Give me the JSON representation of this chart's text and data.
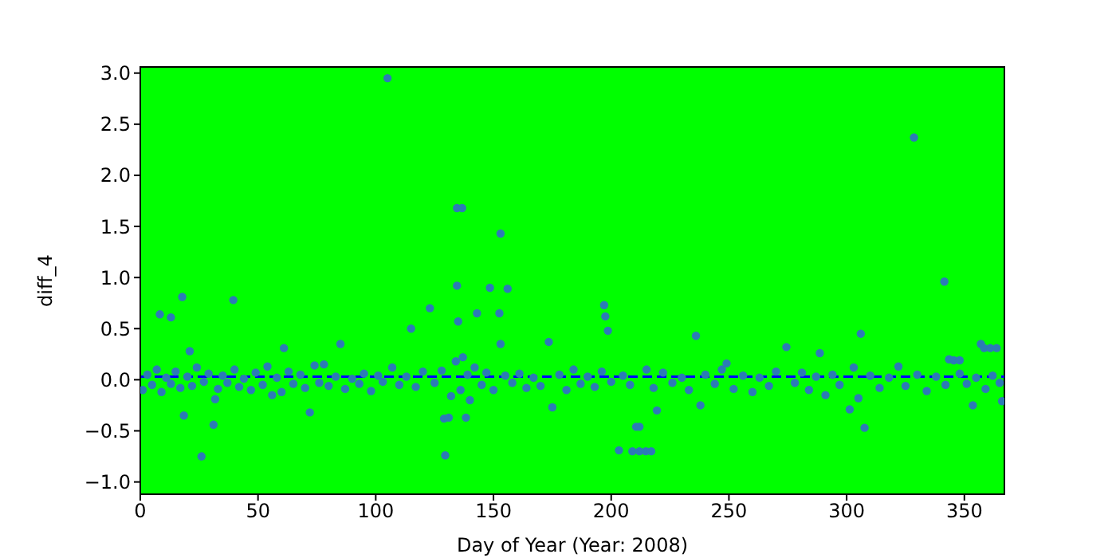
{
  "chart_data": {
    "type": "scatter",
    "xlabel": "Day of Year (Year: 2008)",
    "ylabel": "diff_4",
    "xlim": [
      0,
      367
    ],
    "ylim": [
      -1.12,
      3.06
    ],
    "xticks": [
      0,
      50,
      100,
      150,
      200,
      250,
      300,
      350
    ],
    "yticks": [
      {
        "value": -1,
        "label": "−1.0"
      },
      {
        "value": -0.5,
        "label": "−0.5"
      },
      {
        "value": 0,
        "label": "0.0"
      },
      {
        "value": 0.5,
        "label": "0.5"
      },
      {
        "value": 1,
        "label": "1.0"
      },
      {
        "value": 1.5,
        "label": "1.5"
      },
      {
        "value": 2,
        "label": "2.0"
      },
      {
        "value": 2.5,
        "label": "2.5"
      },
      {
        "value": 3,
        "label": "3.0"
      }
    ],
    "marker": "circle",
    "ref_lines": [
      {
        "axis": "y",
        "value": 0.03,
        "color": "#0000ff",
        "line_style": "dashed"
      }
    ],
    "series": [
      {
        "color": "#2c7bb6",
        "x": [
          105,
          134.5,
          136.7,
          153,
          134.5,
          148.5,
          156,
          17.8,
          39.5,
          8.3,
          13,
          123,
          135,
          143,
          152.5,
          115,
          153,
          173.5,
          197,
          197.5,
          198.6,
          85,
          61,
          21,
          328.6,
          341.5,
          236,
          274.4,
          306,
          288.6,
          357,
          358.4,
          361,
          363.7,
          343.5,
          345.5,
          348,
          18.5,
          31.8,
          31.1,
          26,
          72,
          129,
          131,
          129.5,
          138.3,
          175,
          203.3,
          209,
          212,
          214.7,
          217,
          210.6,
          212,
          219.4,
          237.9,
          307.6,
          301.3,
          353.6,
          366,
          1,
          3,
          5,
          7,
          9,
          11,
          13,
          15,
          17,
          20,
          22,
          24,
          27,
          29,
          33,
          35,
          37,
          40,
          42,
          44,
          47,
          49,
          52,
          54,
          56,
          58,
          60,
          63,
          65,
          68,
          70,
          74,
          76,
          78,
          80,
          83,
          87,
          90,
          93,
          95,
          98,
          101,
          103,
          107,
          110,
          113,
          117,
          120,
          125,
          128,
          132,
          134,
          136,
          137,
          139,
          140,
          142,
          145,
          147,
          150,
          155,
          158,
          161,
          164,
          167,
          170,
          178,
          181,
          184,
          187,
          190,
          193,
          196,
          200,
          205,
          208,
          215,
          218,
          222,
          226,
          230,
          233,
          240,
          244,
          247,
          249,
          252,
          256,
          260,
          263,
          267,
          270,
          278,
          281,
          284,
          287,
          291,
          294,
          297,
          303,
          305,
          310,
          314,
          318,
          322,
          325,
          330,
          334,
          338,
          342,
          348,
          351,
          355,
          359,
          362,
          365
        ],
        "values": [
          2.95,
          1.68,
          1.68,
          1.43,
          0.92,
          0.9,
          0.89,
          0.81,
          0.78,
          0.64,
          0.61,
          0.7,
          0.57,
          0.65,
          0.65,
          0.5,
          0.35,
          0.37,
          0.73,
          0.62,
          0.48,
          0.35,
          0.31,
          0.28,
          2.37,
          0.96,
          0.43,
          0.32,
          0.45,
          0.26,
          0.35,
          0.31,
          0.31,
          0.31,
          0.2,
          0.19,
          0.19,
          -0.35,
          -0.19,
          -0.44,
          -0.75,
          -0.32,
          -0.38,
          -0.37,
          -0.74,
          -0.37,
          -0.27,
          -0.69,
          -0.7,
          -0.7,
          -0.7,
          -0.7,
          -0.46,
          -0.46,
          -0.3,
          -0.25,
          -0.47,
          -0.29,
          -0.25,
          -0.21,
          -0.1,
          0.05,
          -0.05,
          0.1,
          -0.12,
          0.02,
          -0.04,
          0.08,
          -0.08,
          0.03,
          -0.06,
          0.12,
          -0.02,
          0.06,
          -0.09,
          0.04,
          -0.03,
          0.1,
          -0.07,
          0.01,
          -0.1,
          0.07,
          -0.05,
          0.13,
          -0.15,
          0.02,
          -0.12,
          0.08,
          -0.04,
          0.05,
          -0.08,
          0.14,
          -0.03,
          0.15,
          -0.06,
          0.03,
          -0.09,
          0.01,
          -0.04,
          0.06,
          -0.11,
          0.04,
          -0.02,
          0.12,
          -0.05,
          0.03,
          -0.07,
          0.08,
          -0.03,
          0.09,
          -0.16,
          0.18,
          -0.1,
          0.22,
          0.05,
          -0.2,
          0.12,
          -0.05,
          0.07,
          -0.1,
          0.04,
          -0.03,
          0.06,
          -0.08,
          0.02,
          -0.06,
          0.05,
          -0.1,
          0.1,
          -0.04,
          0.03,
          -0.07,
          0.08,
          -0.02,
          0.04,
          -0.05,
          0.1,
          -0.08,
          0.07,
          -0.03,
          0.02,
          -0.1,
          0.05,
          -0.04,
          0.1,
          0.16,
          -0.09,
          0.04,
          -0.12,
          0.02,
          -0.06,
          0.08,
          -0.03,
          0.07,
          -0.1,
          0.03,
          -0.15,
          0.05,
          -0.05,
          0.12,
          -0.18,
          0.04,
          -0.08,
          0.02,
          0.13,
          -0.06,
          0.05,
          -0.11,
          0.03,
          -0.05,
          0.06,
          -0.04,
          0.02,
          -0.09,
          0.04,
          -0.03
        ]
      }
    ]
  }
}
